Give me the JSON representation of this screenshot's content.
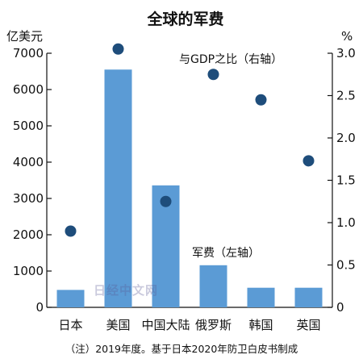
{
  "chart_data": {
    "type": "bar",
    "title": "全球的军费",
    "left_axis_unit": "亿美元",
    "right_axis_unit": "%",
    "categories": [
      "日本",
      "美国",
      "中国大陆",
      "俄罗斯",
      "韩国",
      "英国"
    ],
    "series": [
      {
        "name": "军费（左轴）",
        "type": "bar",
        "axis": "left",
        "values": [
          480,
          6550,
          3360,
          1160,
          540,
          540
        ],
        "color": "#5b9bd5"
      },
      {
        "name": "与GDP之比（右轴）",
        "type": "scatter",
        "axis": "right",
        "values": [
          0.9,
          3.05,
          1.25,
          2.75,
          2.45,
          1.73
        ],
        "color": "#1e4d7b"
      }
    ],
    "left_axis": {
      "min": 0,
      "max": 7000,
      "ticks": [
        0,
        1000,
        2000,
        3000,
        4000,
        5000,
        6000,
        7000
      ]
    },
    "right_axis": {
      "min": 0,
      "max": 3.0,
      "ticks": [
        "0",
        "0.5",
        "1.0",
        "1.5",
        "2.0",
        "2.5",
        "3.0"
      ]
    },
    "grid": false,
    "note": "（注）2019年度。基于日本2020年防卫白皮书制成",
    "watermark": "日经中文网"
  }
}
